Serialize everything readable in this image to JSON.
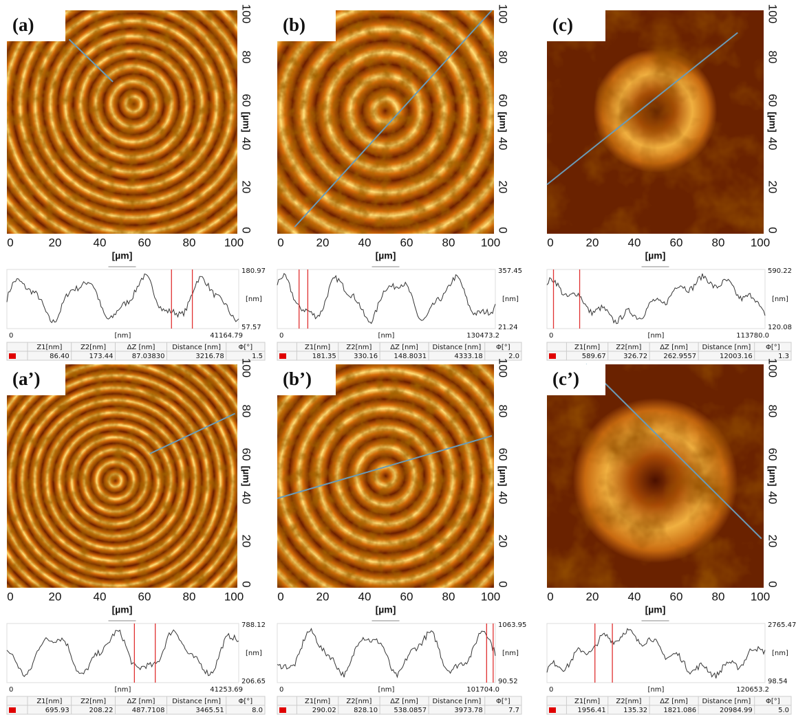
{
  "image_ticks": [
    "0",
    "20",
    "40",
    "60",
    "80",
    "100"
  ],
  "image_unit": "[µm]",
  "profile_unit": "[nm]",
  "profile_start": "0",
  "table_headers": [
    "Z1[nm]",
    "Z2[nm]",
    "ΔZ [nm]",
    "Distance [nm]",
    "Φ[°]"
  ],
  "panels": [
    {
      "label": "(a)",
      "profile_max": "180.97",
      "profile_min": "57.57",
      "profile_end": "41164.79",
      "row": [
        "86.40",
        "173.44",
        "87.03830",
        "3216.78",
        "1.5"
      ]
    },
    {
      "label": "(b)",
      "profile_max": "357.45",
      "profile_min": "21.24",
      "profile_end": "130473.2",
      "row": [
        "181.35",
        "330.16",
        "148.8031",
        "4333.18",
        "2.0"
      ]
    },
    {
      "label": "(c)",
      "profile_max": "590.22",
      "profile_min": "120.08",
      "profile_end": "113780.0",
      "row": [
        "589.67",
        "326.72",
        "262.9557",
        "12003.16",
        "1.3"
      ]
    },
    {
      "label": "(a’)",
      "profile_max": "788.12",
      "profile_min": "206.65",
      "profile_end": "41253.69",
      "row": [
        "695.93",
        "208.22",
        "487.7108",
        "3465.51",
        "8.0"
      ]
    },
    {
      "label": "(b’)",
      "profile_max": "1063.95",
      "profile_min": "90.52",
      "profile_end": "101704.0",
      "row": [
        "290.02",
        "828.10",
        "538.0857",
        "3973.78",
        "7.7"
      ]
    },
    {
      "label": "(c’)",
      "profile_max": "2765.47",
      "profile_min": "98.54",
      "profile_end": "120653.2",
      "row": [
        "1956.41",
        "135.32",
        "1821.086",
        "20984.99",
        "5.0"
      ]
    }
  ]
}
